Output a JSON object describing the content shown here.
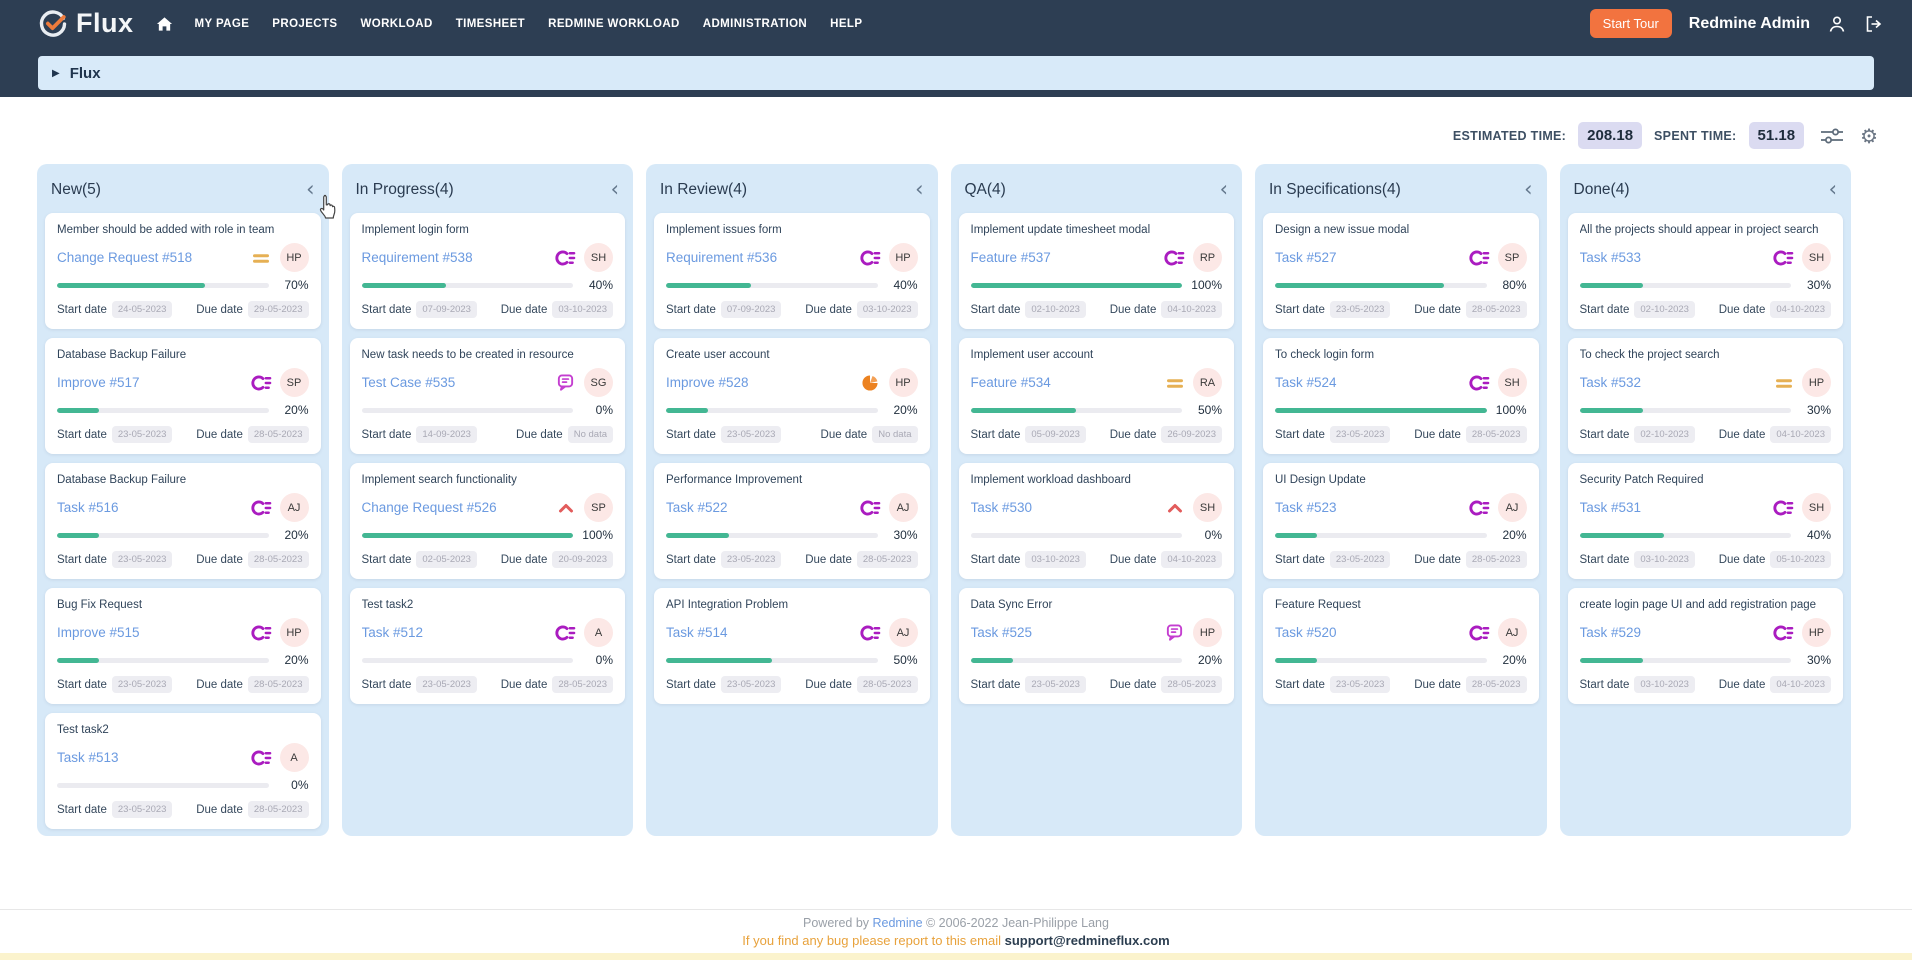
{
  "navbar": {
    "brand": "Flux",
    "items": [
      "MY PAGE",
      "PROJECTS",
      "WORKLOAD",
      "TIMESHEET",
      "REDMINE WORKLOAD",
      "ADMINISTRATION",
      "HELP"
    ],
    "start_tour_label": "Start Tour",
    "user_name": "Redmine Admin"
  },
  "breadcrumb": {
    "expand_icon": "▶",
    "label": "Flux"
  },
  "summary": {
    "estimated_label": "ESTIMATED TIME:",
    "estimated_value": "208.18",
    "spent_label": "SPENT TIME:",
    "spent_value": "51.18",
    "gear_icon": "⚙"
  },
  "board": {
    "collapse_icon": "‹",
    "labels": {
      "start_date": "Start date",
      "due_date": "Due date"
    },
    "columns": [
      {
        "title": "New(5)",
        "cards": [
          {
            "title": "Member should be added with role in team",
            "link": "Change Request #518",
            "icon": "priority-equals-icon",
            "avatar": "HP",
            "percent": "70%",
            "start_date": "24-05-2023",
            "due_date": "29-05-2023"
          },
          {
            "title": "Database Backup Failure",
            "link": "Improve #517",
            "icon": "priority-c-lines-icon",
            "avatar": "SP",
            "percent": "20%",
            "start_date": "23-05-2023",
            "due_date": "28-05-2023"
          },
          {
            "title": "Database Backup Failure",
            "link": "Task #516",
            "icon": "priority-c-lines-icon",
            "avatar": "AJ",
            "percent": "20%",
            "start_date": "23-05-2023",
            "due_date": "28-05-2023"
          },
          {
            "title": "Bug Fix Request",
            "link": "Improve #515",
            "icon": "priority-c-lines-icon",
            "avatar": "HP",
            "percent": "20%",
            "start_date": "23-05-2023",
            "due_date": "28-05-2023"
          },
          {
            "title": "Test task2",
            "link": "Task #513",
            "icon": "priority-c-lines-icon",
            "avatar": "A",
            "percent": "0%",
            "start_date": "23-05-2023",
            "due_date": "28-05-2023"
          }
        ]
      },
      {
        "title": "In Progress(4)",
        "cards": [
          {
            "title": "Implement login form",
            "link": "Requirement #538",
            "icon": "priority-c-lines-icon",
            "avatar": "SH",
            "percent": "40%",
            "start_date": "07-09-2023",
            "due_date": "03-10-2023"
          },
          {
            "title": "New task needs to be created in resource",
            "link": "Test Case #535",
            "icon": "note-bubble-icon",
            "avatar": "SG",
            "percent": "0%",
            "start_date": "14-09-2023",
            "due_date": "No data"
          },
          {
            "title": "Implement search functionality",
            "link": "Change Request #526",
            "icon": "priority-chevron-up-icon",
            "avatar": "SP",
            "percent": "100%",
            "start_date": "02-05-2023",
            "due_date": "20-09-2023"
          },
          {
            "title": "Test task2",
            "link": "Task #512",
            "icon": "priority-c-lines-icon",
            "avatar": "A",
            "percent": "0%",
            "start_date": "23-05-2023",
            "due_date": "28-05-2023"
          }
        ]
      },
      {
        "title": "In Review(4)",
        "cards": [
          {
            "title": "Implement issues form",
            "link": "Requirement #536",
            "icon": "priority-c-lines-icon",
            "avatar": "HP",
            "percent": "40%",
            "start_date": "07-09-2023",
            "due_date": "03-10-2023"
          },
          {
            "title": "Create user account",
            "link": "Improve #528",
            "icon": "pie-chart-icon",
            "avatar": "HP",
            "percent": "20%",
            "start_date": "23-05-2023",
            "due_date": "No data"
          },
          {
            "title": "Performance Improvement",
            "link": "Task #522",
            "icon": "priority-c-lines-icon",
            "avatar": "AJ",
            "percent": "30%",
            "start_date": "23-05-2023",
            "due_date": "28-05-2023"
          },
          {
            "title": "API Integration Problem",
            "link": "Task #514",
            "icon": "priority-c-lines-icon",
            "avatar": "AJ",
            "percent": "50%",
            "start_date": "23-05-2023",
            "due_date": "28-05-2023"
          }
        ]
      },
      {
        "title": "QA(4)",
        "cards": [
          {
            "title": "Implement update timesheet modal",
            "link": "Feature #537",
            "icon": "priority-c-lines-icon",
            "avatar": "RP",
            "percent": "100%",
            "start_date": "02-10-2023",
            "due_date": "04-10-2023"
          },
          {
            "title": "Implement user account",
            "link": "Feature #534",
            "icon": "priority-equals-icon",
            "avatar": "RA",
            "percent": "50%",
            "start_date": "05-09-2023",
            "due_date": "26-09-2023"
          },
          {
            "title": "Implement workload dashboard",
            "link": "Task #530",
            "icon": "priority-chevron-up-icon",
            "avatar": "SH",
            "percent": "0%",
            "start_date": "03-10-2023",
            "due_date": "04-10-2023"
          },
          {
            "title": "Data Sync Error",
            "link": "Task #525",
            "icon": "note-bubble-icon",
            "avatar": "HP",
            "percent": "20%",
            "start_date": "23-05-2023",
            "due_date": "28-05-2023"
          }
        ]
      },
      {
        "title": "In Specifications(4)",
        "cards": [
          {
            "title": "Design a new issue modal",
            "link": "Task #527",
            "icon": "priority-c-lines-icon",
            "avatar": "SP",
            "percent": "80%",
            "start_date": "23-05-2023",
            "due_date": "28-05-2023"
          },
          {
            "title": "To check login form",
            "link": "Task #524",
            "icon": "priority-c-lines-icon",
            "avatar": "SH",
            "percent": "100%",
            "start_date": "23-05-2023",
            "due_date": "28-05-2023"
          },
          {
            "title": "UI Design Update",
            "link": "Task #523",
            "icon": "priority-c-lines-icon",
            "avatar": "AJ",
            "percent": "20%",
            "start_date": "23-05-2023",
            "due_date": "28-05-2023"
          },
          {
            "title": "Feature Request",
            "link": "Task #520",
            "icon": "priority-c-lines-icon",
            "avatar": "AJ",
            "percent": "20%",
            "start_date": "23-05-2023",
            "due_date": "28-05-2023"
          }
        ]
      },
      {
        "title": "Done(4)",
        "cards": [
          {
            "title": "All the projects should appear in project search",
            "link": "Task #533",
            "icon": "priority-c-lines-icon",
            "avatar": "SH",
            "percent": "30%",
            "start_date": "02-10-2023",
            "due_date": "04-10-2023"
          },
          {
            "title": "To check the project search",
            "link": "Task #532",
            "icon": "priority-equals-icon",
            "avatar": "HP",
            "percent": "30%",
            "start_date": "02-10-2023",
            "due_date": "04-10-2023"
          },
          {
            "title": "Security Patch Required",
            "link": "Task #531",
            "icon": "priority-c-lines-icon",
            "avatar": "SH",
            "percent": "40%",
            "start_date": "03-10-2023",
            "due_date": "05-10-2023"
          },
          {
            "title": "create login page UI and add registration page",
            "link": "Task #529",
            "icon": "priority-c-lines-icon",
            "avatar": "HP",
            "percent": "30%",
            "start_date": "03-10-2023",
            "due_date": "04-10-2023"
          }
        ]
      }
    ]
  },
  "footer": {
    "line1_prefix": "Powered by ",
    "redmine_link": "Redmine",
    "line1_suffix": " © 2006-2022 Jean-Philippe Lang",
    "line2_prefix": "If you find any bug please report to this email ",
    "email": "support@redmineflux.com"
  },
  "colors": {
    "navbar_bg": "#2d3e53",
    "accent_orange": "#f2733f",
    "column_bg": "#d7e9f8",
    "breadcrumb_bg": "#d8eaf9",
    "progress_green": "#43b793",
    "link_blue": "#6b9ae0",
    "priority_purple": "#aa1cc0",
    "priority_orange": "#e6b054",
    "priority_red": "#e25c5c",
    "avatar_bg": "#fce8e6",
    "badge_bg": "#ededf2",
    "value_badge_bg": "#dbdbf1",
    "footer_orange": "#e8a23c",
    "bottom_strip": "#fbf3cd"
  }
}
